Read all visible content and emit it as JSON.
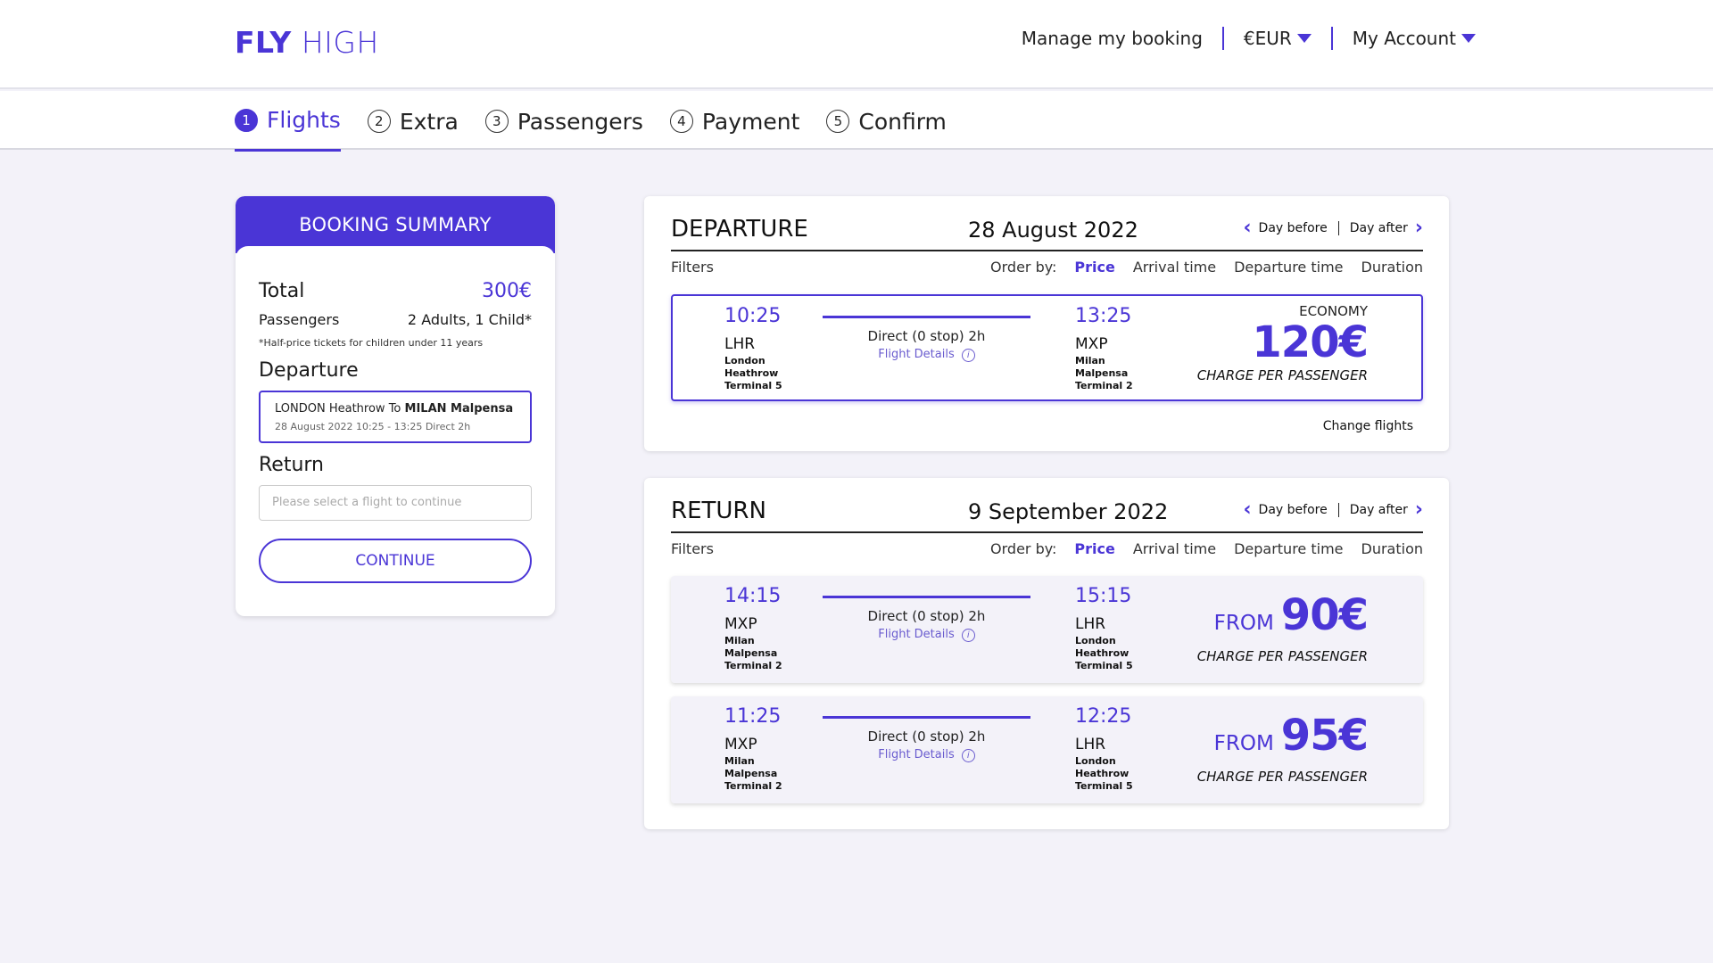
{
  "header": {
    "logo_bold": "FLY",
    "logo_light": "HIGH",
    "manage": "Manage my booking",
    "currency": "€EUR",
    "account": "My Account"
  },
  "steps": [
    {
      "num": "1",
      "label": "Flights"
    },
    {
      "num": "2",
      "label": "Extra"
    },
    {
      "num": "3",
      "label": "Passengers"
    },
    {
      "num": "4",
      "label": "Payment"
    },
    {
      "num": "5",
      "label": "Confirm"
    }
  ],
  "summary": {
    "title": "BOOKING SUMMARY",
    "total_label": "Total",
    "total_value": "300€",
    "passengers_label": "Passengers",
    "passengers_value": "2 Adults, 1 Child*",
    "note": "*Half-price tickets for children under 11 years",
    "departure_title": "Departure",
    "dep_from": "LONDON Heathrow To ",
    "dep_to": "MILAN Malpensa",
    "dep_details": "28 August 2022   10:25 - 13:25   Direct 2h",
    "return_title": "Return",
    "return_placeholder": "Please select a flight to continue",
    "continue": "CONTINUE"
  },
  "common": {
    "day_before": "Day before",
    "day_after": "Day after",
    "filters": "Filters",
    "order_by": "Order by:",
    "order_options": [
      "Price",
      "Arrival time",
      "Departure time",
      "Duration"
    ],
    "direct": "Direct (0 stop) 2h",
    "flight_details": "Flight Details",
    "charge": "CHARGE PER PASSENGER",
    "from": "FROM",
    "info": "i"
  },
  "departure": {
    "title": "DEPARTURE",
    "date": "28 August 2022",
    "flight": {
      "dep_time": "10:25",
      "dep_code": "LHR",
      "dep_loc": [
        "London",
        "Heathrow",
        "Terminal 5"
      ],
      "arr_time": "13:25",
      "arr_code": "MXP",
      "arr_loc": [
        "Milan",
        "Malpensa",
        "Terminal 2"
      ],
      "class": "ECONOMY",
      "price": "120€"
    },
    "change": "Change flights"
  },
  "return": {
    "title": "RETURN",
    "date": "9 September 2022",
    "flights": [
      {
        "dep_time": "14:15",
        "dep_code": "MXP",
        "dep_loc": [
          "Milan",
          "Malpensa",
          "Terminal 2"
        ],
        "arr_time": "15:15",
        "arr_code": "LHR",
        "arr_loc": [
          "London",
          "Heathrow",
          "Terminal 5"
        ],
        "price": "90€"
      },
      {
        "dep_time": "11:25",
        "dep_code": "MXP",
        "dep_loc": [
          "Milan",
          "Malpensa",
          "Terminal 2"
        ],
        "arr_time": "12:25",
        "arr_code": "LHR",
        "arr_loc": [
          "London",
          "Heathrow",
          "Terminal 5"
        ],
        "price": "95€"
      }
    ]
  },
  "colors": {
    "accent": "#4a35d6",
    "background": "#f3f2f9"
  }
}
